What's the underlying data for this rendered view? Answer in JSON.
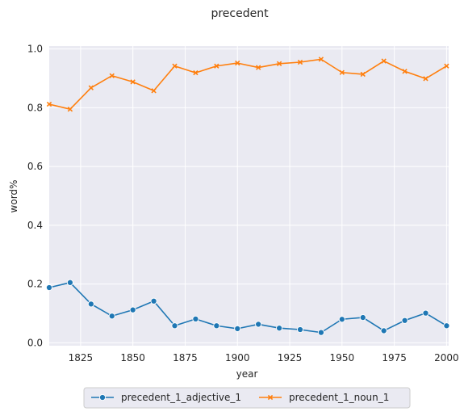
{
  "chart_data": {
    "type": "line",
    "title": "precedent",
    "xlabel": "year",
    "ylabel": "word%",
    "xlim": [
      1810,
      2001
    ],
    "ylim": [
      -0.01,
      1.01
    ],
    "xticks": [
      1825,
      1850,
      1875,
      1900,
      1925,
      1950,
      1975,
      2000
    ],
    "yticks": [
      0.0,
      0.2,
      0.4,
      0.6,
      0.8,
      1.0
    ],
    "grid": true,
    "legend_position": "bottom-center",
    "x": [
      1810,
      1820,
      1830,
      1840,
      1850,
      1860,
      1870,
      1880,
      1890,
      1900,
      1910,
      1920,
      1930,
      1940,
      1950,
      1960,
      1970,
      1980,
      1990,
      2000
    ],
    "series": [
      {
        "name": "precedent_1_adjective_1",
        "color": "#1f77b4",
        "marker": "circle",
        "values": [
          0.188,
          0.205,
          0.132,
          0.091,
          0.112,
          0.142,
          0.058,
          0.081,
          0.058,
          0.048,
          0.063,
          0.05,
          0.045,
          0.035,
          0.08,
          0.086,
          0.041,
          0.076,
          0.101,
          0.058
        ]
      },
      {
        "name": "precedent_1_noun_1",
        "color": "#ff7f0e",
        "marker": "x",
        "values": [
          0.812,
          0.795,
          0.868,
          0.909,
          0.888,
          0.858,
          0.942,
          0.919,
          0.942,
          0.952,
          0.937,
          0.95,
          0.955,
          0.965,
          0.92,
          0.914,
          0.959,
          0.924,
          0.899,
          0.942
        ]
      }
    ]
  }
}
